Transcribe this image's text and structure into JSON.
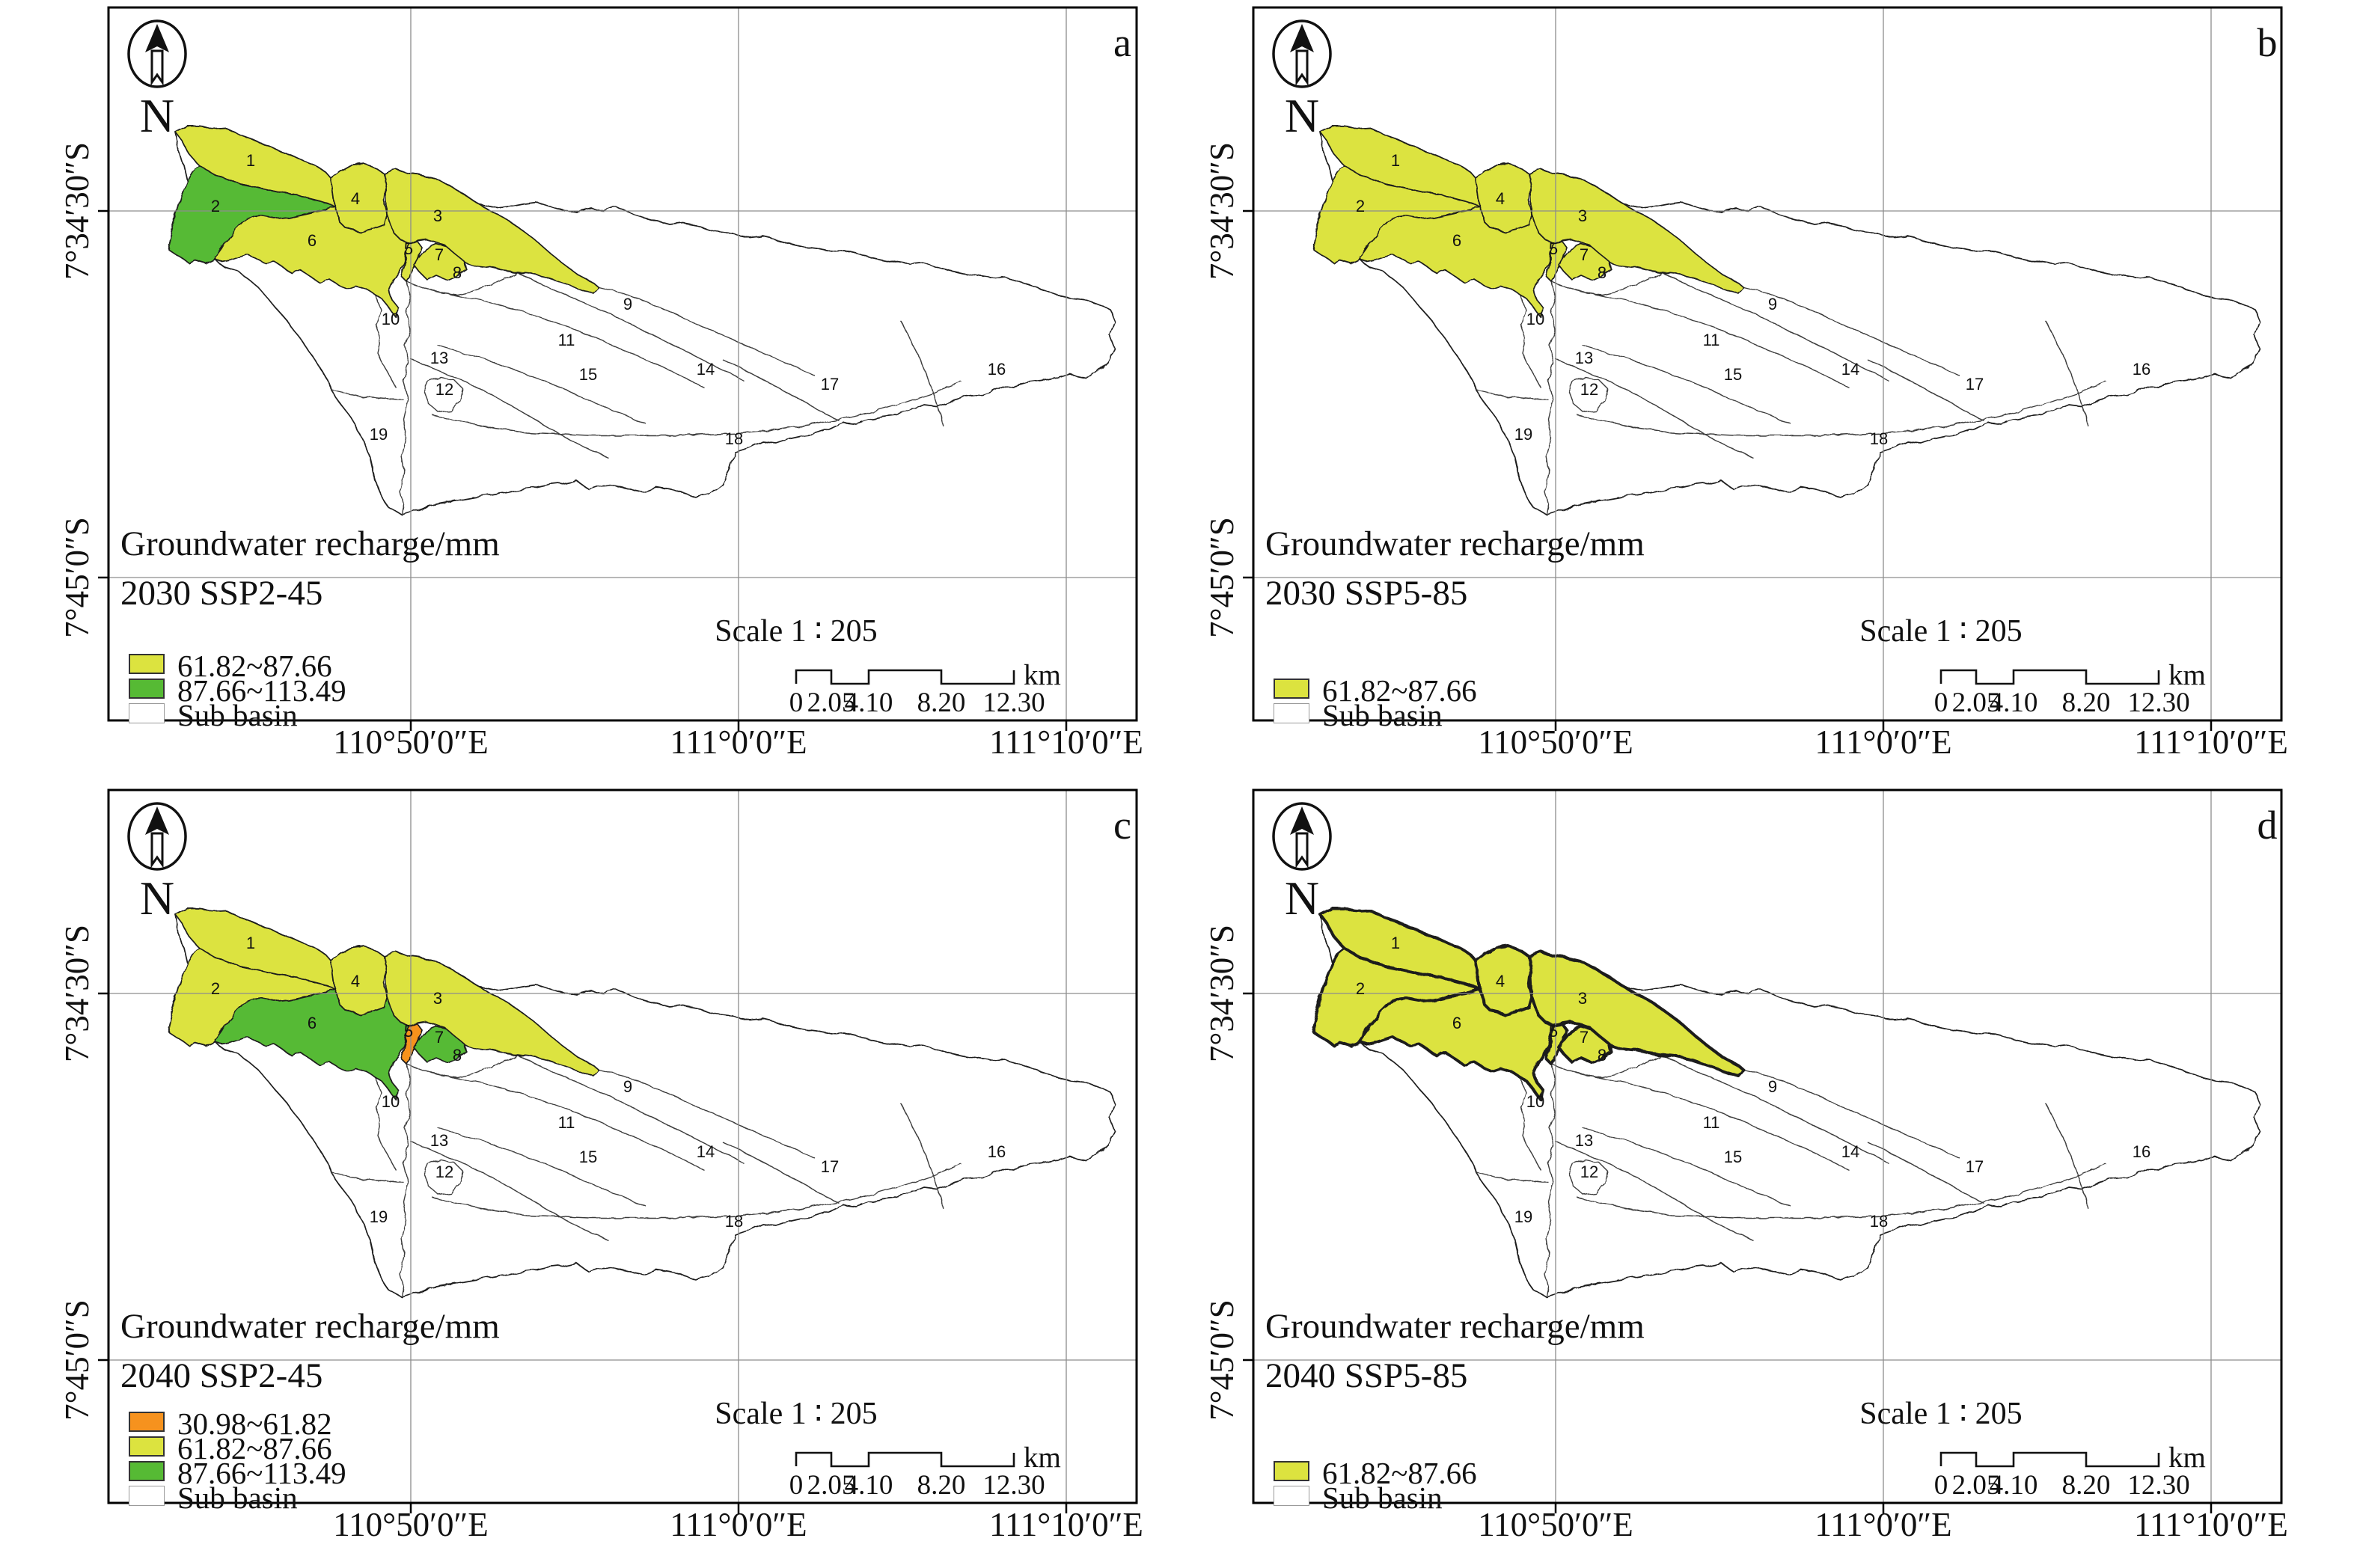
{
  "colors": {
    "yellow": "#dce33f",
    "green": "#56ba34",
    "orange": "#f6921e",
    "white": "#ffffff",
    "grid": "#8d8d8d",
    "outline": "#1c1c1c"
  },
  "north_label": "N",
  "axis": {
    "x_labels": [
      "110°50′0″E",
      "111°0′0″E",
      "111°10′0″E"
    ],
    "y_labels": [
      "7°34′30″S",
      "7°45′0″S"
    ]
  },
  "scalebar": {
    "title": "Scale 1 ∶ 205",
    "ticks": [
      "0",
      "2.05",
      "4.10",
      "8.20",
      "12.30"
    ],
    "unit": "km"
  },
  "subbasin_numbers": [
    "1",
    "2",
    "3",
    "4",
    "5",
    "6",
    "7",
    "8",
    "9",
    "10",
    "11",
    "12",
    "13",
    "14",
    "15",
    "16",
    "17",
    "18",
    "19"
  ],
  "panels": [
    {
      "letter": "a",
      "legend_title": "Groundwater recharge/mm",
      "scenario": "2030 SSP2-45",
      "legend": [
        {
          "color_key": "yellow",
          "label": "61.82~87.66"
        },
        {
          "color_key": "green",
          "label": "87.66~113.49"
        },
        {
          "color_key": "white",
          "label": "Sub basin"
        }
      ],
      "fills": {
        "1": "yellow",
        "2": "green",
        "3": "yellow",
        "4": "yellow",
        "5": "yellow",
        "6": "yellow",
        "7": "yellow"
      },
      "thick_borders": false
    },
    {
      "letter": "b",
      "legend_title": "Groundwater recharge/mm",
      "scenario": "2030 SSP5-85",
      "legend": [
        {
          "color_key": "yellow",
          "label": "61.82~87.66"
        },
        {
          "color_key": "white",
          "label": "Sub basin"
        }
      ],
      "fills": {
        "1": "yellow",
        "2": "yellow",
        "3": "yellow",
        "4": "yellow",
        "5": "yellow",
        "6": "yellow",
        "7": "yellow"
      },
      "thick_borders": false
    },
    {
      "letter": "c",
      "legend_title": "Groundwater recharge/mm",
      "scenario": "2040 SSP2-45",
      "legend": [
        {
          "color_key": "orange",
          "label": "30.98~61.82"
        },
        {
          "color_key": "yellow",
          "label": "61.82~87.66"
        },
        {
          "color_key": "green",
          "label": "87.66~113.49"
        },
        {
          "color_key": "white",
          "label": "Sub basin"
        }
      ],
      "fills": {
        "1": "yellow",
        "2": "yellow",
        "3": "yellow",
        "4": "yellow",
        "5": "orange",
        "6": "green",
        "7": "green"
      },
      "thick_borders": false
    },
    {
      "letter": "d",
      "legend_title": "Groundwater recharge/mm",
      "scenario": "2040 SSP5-85",
      "legend": [
        {
          "color_key": "yellow",
          "label": "61.82~87.66"
        },
        {
          "color_key": "white",
          "label": "Sub basin"
        }
      ],
      "fills": {
        "1": "yellow",
        "2": "yellow",
        "3": "yellow",
        "4": "yellow",
        "5": "yellow",
        "6": "yellow",
        "7": "yellow"
      },
      "thick_borders": true
    }
  ]
}
